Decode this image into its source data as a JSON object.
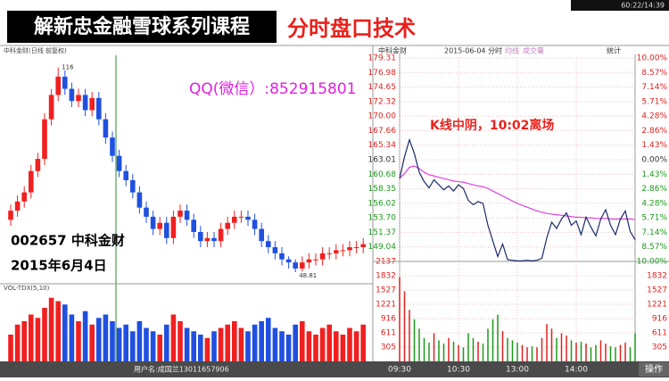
{
  "banner": {
    "series_title": "解新忠金融雪球系列课程",
    "lesson_title": "分时盘口技术",
    "clock": "60:22/14:39"
  },
  "overlays": {
    "qq": "QQ(微信）:852915801",
    "stock": "002657 中科金财",
    "date": "2015年6月4日",
    "note": "K线中阴，10:02离场"
  },
  "daily_chart": {
    "type": "candlestick",
    "header": "中科金财(日线 前复权)",
    "volume_header": "VOL-TDX(5,10)",
    "open": [
      66,
      69,
      72,
      75,
      82,
      86,
      99,
      107,
      113,
      109,
      105,
      107,
      102,
      106,
      99,
      93,
      87,
      82,
      79,
      75,
      70,
      67,
      63,
      65,
      60,
      67,
      69,
      66,
      62,
      59,
      60,
      59,
      63,
      65,
      67,
      67,
      66,
      63,
      59,
      57,
      55,
      53,
      52,
      50,
      52,
      53,
      53,
      55,
      55,
      56,
      56,
      57,
      57
    ],
    "high": [
      71,
      74,
      77,
      84,
      88,
      101,
      109,
      116,
      115,
      111,
      109,
      109,
      108,
      108,
      101,
      95,
      89,
      84,
      81,
      77,
      72,
      69,
      67,
      67,
      69,
      71,
      71,
      68,
      64,
      62,
      62,
      65,
      67,
      69,
      69,
      69,
      68,
      65,
      61,
      59,
      57,
      54,
      53,
      54,
      55,
      55,
      57,
      57,
      58,
      58,
      59,
      59,
      60
    ],
    "low": [
      64,
      67,
      70,
      73,
      80,
      84,
      97,
      105,
      107,
      103,
      103,
      100,
      100,
      97,
      91,
      85,
      80,
      77,
      73,
      68,
      65,
      61,
      61,
      58,
      58,
      65,
      64,
      60,
      57,
      57,
      57,
      57,
      61,
      63,
      65,
      64,
      61,
      57,
      55,
      53,
      51,
      50,
      48.81,
      49,
      50,
      51,
      51,
      53,
      53,
      54,
      54,
      55,
      55
    ],
    "close": [
      69,
      72,
      75,
      82,
      86,
      99,
      107,
      113,
      109,
      105,
      107,
      102,
      106,
      99,
      93,
      87,
      82,
      79,
      75,
      70,
      67,
      63,
      65,
      60,
      67,
      69,
      66,
      62,
      59,
      60,
      59,
      63,
      65,
      67,
      67,
      66,
      63,
      59,
      57,
      55,
      53,
      52,
      50,
      52,
      53,
      53,
      55,
      55,
      56,
      56,
      57,
      57,
      58
    ],
    "volume": [
      40,
      55,
      60,
      70,
      65,
      80,
      95,
      90,
      85,
      70,
      60,
      75,
      55,
      65,
      70,
      60,
      50,
      55,
      45,
      60,
      50,
      45,
      40,
      55,
      70,
      60,
      50,
      45,
      40,
      35,
      45,
      50,
      55,
      60,
      50,
      45,
      55,
      60,
      65,
      50,
      45,
      40,
      55,
      60,
      45,
      40,
      50,
      55,
      45,
      40,
      50,
      45,
      55
    ],
    "ylim": [
      45,
      120
    ],
    "vol_ylim": [
      0,
      100
    ]
  },
  "intraday": {
    "type": "line",
    "header": [
      "中科金财",
      "2015-06-04 分时",
      "均线",
      "成交量",
      "统计"
    ],
    "x": [
      0,
      5,
      10,
      15,
      20,
      25,
      30,
      35,
      40,
      45,
      50,
      55,
      60,
      65,
      70,
      75,
      80,
      85,
      90,
      95,
      100,
      105,
      110,
      115,
      120,
      125,
      130,
      135,
      140,
      145,
      150,
      155,
      160,
      165,
      170,
      175,
      180,
      185,
      190,
      195,
      200,
      205,
      210,
      215,
      220,
      225,
      230,
      235,
      240
    ],
    "price": [
      160.0,
      163.5,
      166.2,
      164.0,
      161.0,
      159.5,
      158.5,
      159.8,
      159.0,
      158.2,
      158.8,
      158.0,
      159.0,
      158.4,
      156.5,
      155.8,
      156.3,
      156.0,
      152.5,
      150.0,
      147.5,
      149.5,
      147.0,
      146.9,
      146.8,
      146.8,
      146.9,
      146.8,
      146.9,
      147.2,
      150.5,
      153.0,
      152.0,
      153.5,
      154.5,
      152.5,
      153.2,
      151.0,
      153.8,
      152.2,
      150.8,
      153.5,
      155.0,
      152.5,
      151.0,
      153.5,
      154.8,
      151.5,
      150.2
    ],
    "average": [
      160.0,
      160.8,
      161.8,
      162.0,
      161.6,
      161.0,
      160.6,
      160.4,
      160.2,
      160.0,
      159.8,
      159.6,
      159.5,
      159.4,
      159.2,
      159.0,
      158.8,
      158.7,
      158.4,
      158.0,
      157.6,
      157.2,
      156.8,
      156.4,
      156.0,
      155.7,
      155.4,
      155.1,
      154.8,
      154.6,
      154.4,
      154.3,
      154.2,
      154.1,
      154.0,
      153.9,
      153.8,
      153.8,
      153.7,
      153.7,
      153.6,
      153.6,
      153.6,
      153.5,
      153.5,
      153.5,
      153.5,
      153.5,
      153.4
    ],
    "volume": [
      1800,
      1500,
      1100,
      900,
      700,
      500,
      400,
      600,
      450,
      380,
      500,
      420,
      350,
      300,
      600,
      500,
      420,
      380,
      700,
      900,
      1000,
      650,
      500,
      450,
      400,
      350,
      300,
      320,
      300,
      500,
      800,
      700,
      500,
      600,
      550,
      450,
      400,
      420,
      380,
      300,
      350,
      450,
      380,
      320,
      300,
      350,
      400,
      300,
      600
    ],
    "xlim": [
      0,
      240
    ],
    "xticks": [
      {
        "value": 0,
        "label": "09:30"
      },
      {
        "value": 60,
        "label": "10:30"
      },
      {
        "value": 120,
        "label": "13:00"
      },
      {
        "value": 180,
        "label": "14:00"
      }
    ],
    "ylim": [
      146.71,
      179.31
    ],
    "yticks": [
      179.31,
      176.98,
      174.65,
      172.32,
      {
        "value": 170,
        "label": "170.00"
      },
      167.66,
      165.34,
      163.01,
      160.68,
      158.35,
      156.02,
      {
        "value": 153.7,
        "label": "153.70"
      },
      151.37,
      149.04
    ],
    "pct_ticks": [
      {
        "value": 179.31,
        "label": "10.00%"
      },
      {
        "value": 176.98,
        "label": "8.57%"
      },
      {
        "value": 174.65,
        "label": "7.14%"
      },
      {
        "value": 172.32,
        "label": "5.71%"
      },
      {
        "value": 170,
        "label": "4.28%"
      },
      {
        "value": 167.66,
        "label": "2.86%"
      },
      {
        "value": 165.34,
        "label": "1.43%"
      },
      {
        "value": 163.01,
        "label": "0.00%"
      },
      {
        "value": 160.68,
        "label": "1.43%"
      },
      {
        "value": 158.35,
        "label": "2.86%"
      },
      {
        "value": 156.02,
        "label": "4.28%"
      },
      {
        "value": 153.7,
        "label": "5.71%"
      },
      {
        "value": 151.37,
        "label": "7.14%"
      },
      {
        "value": 149.04,
        "label": "8.57%"
      },
      {
        "value": 146.71,
        "label": "10.00%"
      }
    ],
    "vol_ylim": [
      0,
      2137
    ],
    "vol_ticks": [
      2137,
      1832,
      1527,
      1221,
      916,
      611,
      305
    ]
  },
  "footer": {
    "user": "用户名:成国兰13011657906",
    "button": "操作"
  }
}
